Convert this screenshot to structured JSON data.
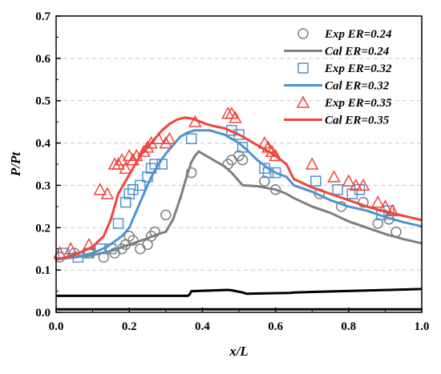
{
  "chart_data": {
    "type": "line",
    "xlabel": "x/L",
    "ylabel": "P/Pt",
    "xlim": [
      0.0,
      1.0
    ],
    "ylim": [
      0.0,
      0.7
    ],
    "xticks": [
      "0.0",
      "0.2",
      "0.4",
      "0.6",
      "0.8",
      "1.0"
    ],
    "yticks": [
      "0.0",
      "0.1",
      "0.2",
      "0.3",
      "0.4",
      "0.5",
      "0.6",
      "0.7"
    ],
    "grid": "horizontal dashed",
    "legend_position": "top-right",
    "colors": {
      "er024": "#7f7f7f",
      "er032": "#4f93cf",
      "er035": "#f0433a",
      "geometry": "#000000"
    },
    "series": [
      {
        "name": "Exp ER=0.24",
        "kind": "scatter",
        "marker": "circle",
        "color": "#7f7f7f",
        "x": [
          0.01,
          0.05,
          0.09,
          0.13,
          0.16,
          0.18,
          0.19,
          0.2,
          0.21,
          0.23,
          0.25,
          0.26,
          0.27,
          0.3,
          0.37,
          0.47,
          0.48,
          0.5,
          0.51,
          0.57,
          0.6,
          0.72,
          0.78,
          0.84,
          0.88,
          0.91,
          0.93
        ],
        "y": [
          0.13,
          0.14,
          0.14,
          0.13,
          0.14,
          0.15,
          0.16,
          0.18,
          0.17,
          0.15,
          0.16,
          0.18,
          0.19,
          0.23,
          0.33,
          0.35,
          0.36,
          0.37,
          0.36,
          0.31,
          0.29,
          0.28,
          0.25,
          0.26,
          0.21,
          0.22,
          0.19
        ]
      },
      {
        "name": "Cal ER=0.24",
        "kind": "line",
        "color": "#7f7f7f",
        "x": [
          0.0,
          0.05,
          0.1,
          0.15,
          0.2,
          0.25,
          0.28,
          0.3,
          0.32,
          0.34,
          0.36,
          0.37,
          0.38,
          0.39,
          0.4,
          0.42,
          0.44,
          0.46,
          0.48,
          0.5,
          0.51,
          0.55,
          0.6,
          0.63,
          0.65,
          0.7,
          0.75,
          0.8,
          0.85,
          0.9,
          0.95,
          1.0
        ],
        "y": [
          0.125,
          0.13,
          0.135,
          0.145,
          0.16,
          0.175,
          0.185,
          0.19,
          0.22,
          0.27,
          0.33,
          0.355,
          0.37,
          0.38,
          0.375,
          0.365,
          0.355,
          0.345,
          0.33,
          0.31,
          0.3,
          0.298,
          0.29,
          0.28,
          0.27,
          0.25,
          0.235,
          0.215,
          0.2,
          0.185,
          0.173,
          0.163
        ]
      },
      {
        "name": "Exp ER=0.32",
        "kind": "scatter",
        "marker": "square",
        "color": "#4f93cf",
        "x": [
          0.02,
          0.06,
          0.09,
          0.12,
          0.15,
          0.17,
          0.19,
          0.2,
          0.21,
          0.23,
          0.25,
          0.26,
          0.27,
          0.29,
          0.37,
          0.48,
          0.5,
          0.51,
          0.57,
          0.58,
          0.6,
          0.71,
          0.77,
          0.81,
          0.83,
          0.89,
          0.91
        ],
        "y": [
          0.14,
          0.13,
          0.14,
          0.15,
          0.15,
          0.21,
          0.26,
          0.28,
          0.29,
          0.3,
          0.32,
          0.34,
          0.35,
          0.35,
          0.41,
          0.43,
          0.42,
          0.39,
          0.34,
          0.33,
          0.33,
          0.31,
          0.29,
          0.28,
          0.29,
          0.23,
          0.24
        ]
      },
      {
        "name": "Cal ER=0.32",
        "kind": "line",
        "color": "#4f93cf",
        "x": [
          0.0,
          0.05,
          0.1,
          0.14,
          0.18,
          0.2,
          0.22,
          0.24,
          0.26,
          0.28,
          0.3,
          0.32,
          0.34,
          0.36,
          0.38,
          0.4,
          0.42,
          0.44,
          0.46,
          0.48,
          0.5,
          0.52,
          0.55,
          0.58,
          0.6,
          0.63,
          0.65,
          0.7,
          0.75,
          0.8,
          0.85,
          0.9,
          0.95,
          1.0
        ],
        "y": [
          0.125,
          0.13,
          0.14,
          0.155,
          0.18,
          0.2,
          0.24,
          0.28,
          0.32,
          0.35,
          0.375,
          0.395,
          0.415,
          0.425,
          0.43,
          0.43,
          0.43,
          0.425,
          0.42,
          0.41,
          0.4,
          0.385,
          0.36,
          0.34,
          0.33,
          0.32,
          0.3,
          0.285,
          0.265,
          0.25,
          0.24,
          0.225,
          0.213,
          0.203
        ]
      },
      {
        "name": "Exp ER=0.35",
        "kind": "scatter",
        "marker": "triangle",
        "color": "#f0433a",
        "x": [
          0.01,
          0.04,
          0.09,
          0.12,
          0.14,
          0.16,
          0.17,
          0.18,
          0.19,
          0.2,
          0.21,
          0.22,
          0.24,
          0.25,
          0.26,
          0.28,
          0.3,
          0.31,
          0.38,
          0.47,
          0.48,
          0.49,
          0.57,
          0.58,
          0.59,
          0.6,
          0.7,
          0.76,
          0.8,
          0.82,
          0.84,
          0.88,
          0.9,
          0.92
        ],
        "y": [
          0.14,
          0.15,
          0.16,
          0.29,
          0.28,
          0.35,
          0.35,
          0.36,
          0.34,
          0.37,
          0.36,
          0.37,
          0.38,
          0.39,
          0.4,
          0.41,
          0.4,
          0.41,
          0.45,
          0.47,
          0.47,
          0.46,
          0.4,
          0.39,
          0.38,
          0.37,
          0.35,
          0.32,
          0.31,
          0.3,
          0.3,
          0.26,
          0.25,
          0.24
        ]
      },
      {
        "name": "Cal ER=0.35",
        "kind": "line",
        "color": "#f0433a",
        "x": [
          0.0,
          0.05,
          0.1,
          0.13,
          0.15,
          0.17,
          0.19,
          0.21,
          0.23,
          0.25,
          0.27,
          0.29,
          0.31,
          0.33,
          0.35,
          0.37,
          0.39,
          0.41,
          0.43,
          0.46,
          0.5,
          0.55,
          0.6,
          0.63,
          0.65,
          0.7,
          0.75,
          0.8,
          0.85,
          0.9,
          0.95,
          1.0
        ],
        "y": [
          0.125,
          0.135,
          0.155,
          0.18,
          0.22,
          0.28,
          0.31,
          0.34,
          0.37,
          0.39,
          0.41,
          0.43,
          0.445,
          0.455,
          0.46,
          0.458,
          0.452,
          0.445,
          0.44,
          0.435,
          0.42,
          0.395,
          0.37,
          0.35,
          0.315,
          0.295,
          0.28,
          0.265,
          0.25,
          0.238,
          0.228,
          0.218
        ]
      },
      {
        "kind": "geometry",
        "color": "#000000",
        "x": [
          0.0,
          0.36,
          0.365,
          0.37,
          0.47,
          0.48,
          0.51,
          0.52,
          0.64,
          0.65,
          1.0
        ],
        "y": [
          0.039,
          0.039,
          0.042,
          0.05,
          0.053,
          0.052,
          0.047,
          0.044,
          0.046,
          0.047,
          0.055
        ]
      },
      {
        "kind": "geometry",
        "color": "#000000",
        "x": [
          0.0,
          1.0
        ],
        "y": [
          0.007,
          0.007
        ]
      }
    ]
  }
}
